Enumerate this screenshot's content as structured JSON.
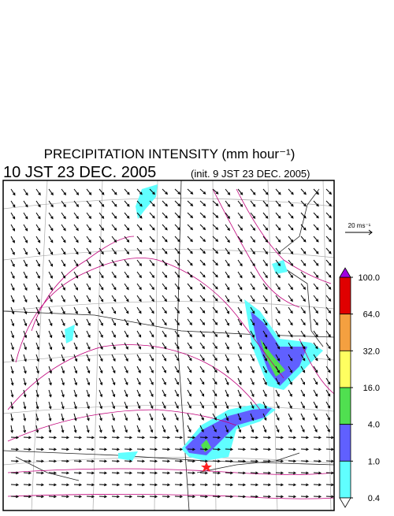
{
  "header": {
    "title": "PRECIPITATION INTENSITY (mm hour⁻¹)",
    "valid_time": "10 JST 23 DEC. 2005",
    "init_time": "(init. 9 JST 23 DEC. 2005)"
  },
  "wind_scale": {
    "label": "20 ms⁻¹"
  },
  "colorbar": {
    "levels": [
      {
        "value": 100,
        "label": "100.0"
      },
      {
        "value": 64,
        "label": "64.0"
      },
      {
        "value": 32,
        "label": "32.0"
      },
      {
        "value": 16,
        "label": "16.0"
      },
      {
        "value": 4,
        "label": "4.0"
      },
      {
        "value": 1,
        "label": "1.0"
      },
      {
        "value": 0.4,
        "label": "0.4"
      }
    ],
    "colors": [
      "#e00000",
      "#f4a040",
      "#ffff60",
      "#50e050",
      "#6060ff",
      "#60ffff"
    ],
    "over_color": "#a000e0",
    "under_color": "#ffffff"
  }
}
